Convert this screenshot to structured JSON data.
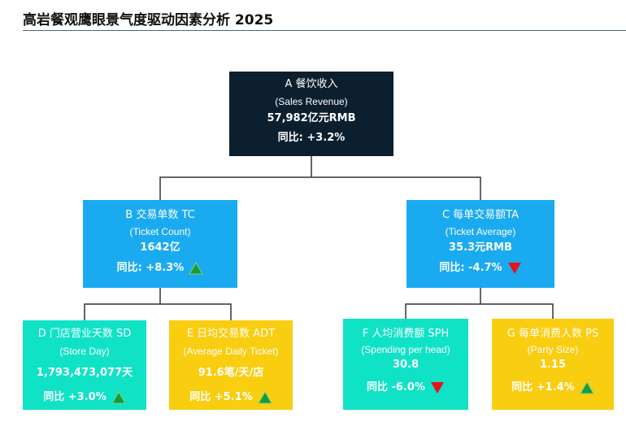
{
  "title": "高岩餐观鹰眼景气度驱动因素分析 2025",
  "colors": {
    "root": "#0c1f2e",
    "level2": "#1aaaf0",
    "teal": "#10e2c6",
    "yellow": "#f9cd10",
    "up": "#1a9a3a",
    "down": "#e8121a",
    "connector": "#333333"
  },
  "nodes": {
    "a": {
      "code": "A 餐饮收入",
      "sub": "(Sales Revenue)",
      "value": "57,982亿元RMB",
      "yoy": "同比: +3.2%",
      "trend": "none"
    },
    "b": {
      "code": "B 交易单数 TC",
      "sub": "(Ticket Count)",
      "value": "1642亿",
      "yoy": "同比: +8.3%",
      "trend": "up"
    },
    "c": {
      "code": "C 每单交易额TA",
      "sub": "(Ticket Average)",
      "value": "35.3元RMB",
      "yoy": "同比: -4.7%",
      "trend": "down"
    },
    "d": {
      "code": "D 门店营业天数 SD",
      "sub": "(Store Day)",
      "value": "1,793,473,077天",
      "yoy": "同比 +3.0%",
      "trend": "up"
    },
    "e": {
      "code": "E 日均交易数 ADT",
      "sub": "(Average Daily Ticket)",
      "value": "91.6笔/天/店",
      "yoy": "同比 +5.1%",
      "trend": "up"
    },
    "f": {
      "code": "F 人均消费额 SPH",
      "sub": "(Spending per head)",
      "value": "30.8",
      "yoy": "同比 -6.0%",
      "trend": "down"
    },
    "g": {
      "code": "G 每单消费人数 PS",
      "sub": "(Party Size)",
      "value": "1.15",
      "yoy": "同比 +1.4%",
      "trend": "up"
    }
  }
}
